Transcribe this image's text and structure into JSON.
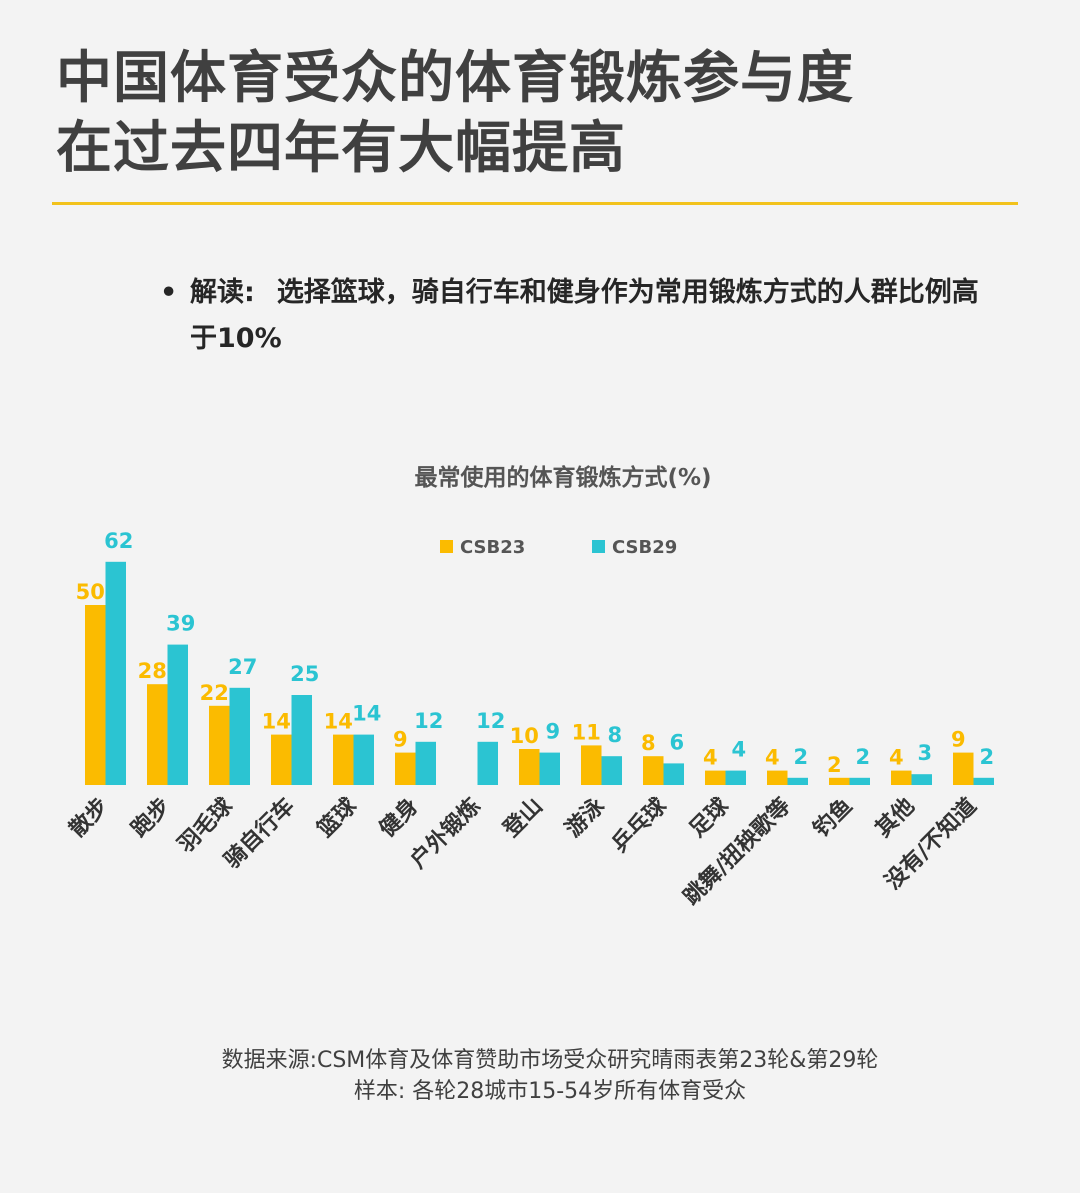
{
  "title": {
    "line1": "中国体育受众的体育锻炼参与度",
    "line2": "在过去四年有大幅提高"
  },
  "note": {
    "bullet": "•",
    "label": "解读:",
    "text": "选择篮球，骑自行车和健身作为常用锻炼方式的人群比例高于10%"
  },
  "footer": {
    "source": "数据来源:CSM体育及体育赞助市场受众研究晴雨表第23轮&第29轮",
    "sample": "样本: 各轮28城市15-54岁所有体育受众"
  },
  "chart_data": {
    "type": "bar",
    "title": "最常使用的体育锻炼方式(%)",
    "xlabel": "",
    "ylabel": "",
    "ylim": [
      0,
      65
    ],
    "grid": false,
    "legend_position": "top-center",
    "categories": [
      "散步",
      "跑步",
      "羽毛球",
      "骑自行车",
      "篮球",
      "健身",
      "户外锻炼",
      "登山",
      "游泳",
      "乒乓球",
      "足球",
      "跳舞/扭秧歌等",
      "钓鱼",
      "其他",
      "没有/不知道"
    ],
    "series": [
      {
        "name": "CSB23",
        "color": "#fbbb00",
        "values": [
          50,
          28,
          22,
          14,
          14,
          9,
          null,
          10,
          11,
          8,
          4,
          4,
          2,
          4,
          9
        ]
      },
      {
        "name": "CSB29",
        "color": "#2bc4d2",
        "values": [
          62,
          39,
          27,
          25,
          14,
          12,
          12,
          9,
          8,
          6,
          4,
          2,
          2,
          3,
          2
        ]
      }
    ]
  }
}
